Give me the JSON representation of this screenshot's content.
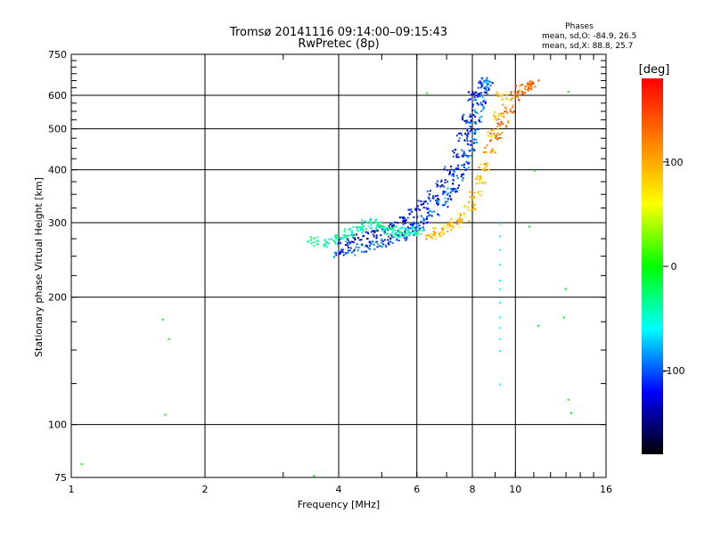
{
  "chart_data": {
    "type": "scatter",
    "title": "Tromsø 20141116 09:14:00–09:15:43",
    "subtitle": "RwPretec (8p)",
    "xlabel": "Frequency [MHz]",
    "ylabel": "Stationary phase Virtual Height [km]",
    "x_scale": "log",
    "y_scale": "log",
    "xlim": [
      1,
      16
    ],
    "ylim": [
      75,
      750
    ],
    "x_ticks": [
      1,
      2,
      4,
      6,
      8,
      10,
      16
    ],
    "x_tick_labels": [
      "1",
      "2",
      "4",
      "6",
      "8",
      "10",
      "16"
    ],
    "y_ticks": [
      75,
      100,
      200,
      300,
      400,
      500,
      600,
      750
    ],
    "y_tick_labels": [
      "75",
      "100",
      "200",
      "300",
      "400",
      "500",
      "600",
      "750"
    ],
    "grid": true,
    "phases_header": "Phases",
    "phases_stats": [
      "mean, sd,O: -84.9, 26.5",
      "mean, sd,X:  88.8, 25.7"
    ],
    "colorbar": {
      "label": "[deg]",
      "range": [
        -180,
        180
      ],
      "ticks": [
        100,
        0,
        -100
      ],
      "tick_labels": [
        "100",
        "0",
        "-100"
      ],
      "colors": [
        "#ff0000",
        "#ff8000",
        "#ffff00",
        "#00ff00",
        "#00ffff",
        "#0000ff",
        "#000000"
      ]
    },
    "series": [
      {
        "mode": "O",
        "phase_deg": -100,
        "x": [
          4.0,
          4.2,
          4.5,
          4.8,
          5.0,
          5.3,
          5.5,
          5.8,
          6.0,
          6.2,
          6.5,
          6.8,
          7.0,
          7.2,
          7.4,
          7.6,
          7.8,
          7.9,
          8.0,
          8.1,
          8.2,
          8.3,
          8.4,
          8.5,
          8.6
        ],
        "y": [
          255,
          258,
          262,
          266,
          270,
          275,
          280,
          288,
          295,
          305,
          318,
          335,
          350,
          365,
          385,
          410,
          440,
          465,
          500,
          530,
          560,
          590,
          620,
          640,
          650
        ]
      },
      {
        "mode": "O2",
        "phase_deg": -120,
        "x": [
          4.1,
          4.4,
          4.7,
          5.0,
          5.3,
          5.6,
          5.9,
          6.2,
          6.5,
          6.8,
          7.1,
          7.4,
          7.6,
          7.8,
          8.0
        ],
        "y": [
          272,
          276,
          282,
          288,
          296,
          305,
          318,
          332,
          350,
          372,
          400,
          440,
          480,
          530,
          600
        ]
      },
      {
        "mode": "low-band",
        "phase_deg": -40,
        "x": [
          3.5,
          3.8,
          4.0,
          4.2,
          4.4,
          4.6,
          4.8,
          5.0,
          5.2,
          5.4,
          5.6,
          5.8,
          6.0
        ],
        "y": [
          272,
          270,
          275,
          285,
          292,
          298,
          300,
          296,
          290,
          288,
          285,
          287,
          290
        ]
      },
      {
        "mode": "X",
        "phase_deg": 90,
        "x": [
          6.4,
          6.7,
          7.0,
          7.3,
          7.6,
          7.9,
          8.1,
          8.3,
          8.5,
          8.7,
          8.9,
          9.1,
          9.3
        ],
        "y": [
          282,
          286,
          292,
          300,
          310,
          330,
          350,
          380,
          410,
          450,
          490,
          540,
          600
        ]
      },
      {
        "mode": "X-upper",
        "phase_deg": 130,
        "x": [
          9.0,
          9.3,
          9.6,
          10.0,
          10.3,
          10.6,
          10.9
        ],
        "y": [
          480,
          520,
          560,
          600,
          620,
          630,
          640
        ]
      },
      {
        "mode": "vertical-9.2",
        "phase_deg": -60,
        "x": [
          9.2,
          9.2,
          9.2,
          9.2,
          9.2,
          9.2,
          9.2,
          9.2,
          9.2,
          9.2,
          9.2,
          9.2
        ],
        "y": [
          300,
          280,
          260,
          240,
          220,
          210,
          195,
          180,
          170,
          160,
          150,
          125
        ]
      },
      {
        "mode": "scattered",
        "phase_deg": 0,
        "x": [
          1.05,
          1.6,
          1.65,
          1.62,
          3.5,
          6.3,
          10.7,
          11.0,
          13.1,
          12.9,
          12.8,
          13.1,
          13.3,
          11.2
        ],
        "y": [
          81,
          178,
          160,
          106,
          76,
          610,
          295,
          400,
          615,
          210,
          180,
          115,
          107,
          172
        ]
      }
    ]
  }
}
